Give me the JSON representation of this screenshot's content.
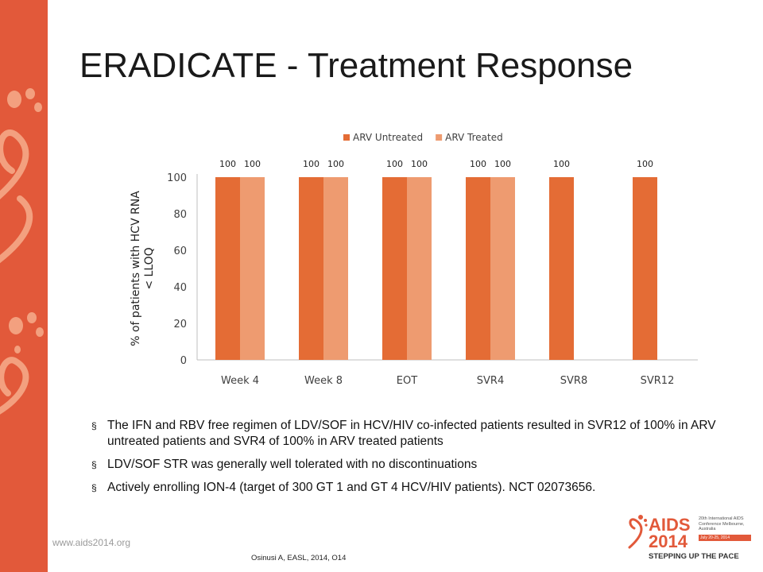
{
  "slide": {
    "title": "ERADICATE - Treatment Response",
    "bullets": [
      "The IFN and RBV free regimen of LDV/SOF in HCV/HIV co-infected patients resulted in SVR12 of 100% in ARV untreated patients and SVR4 of 100% in ARV treated patients",
      "LDV/SOF STR was generally well tolerated with no discontinuations",
      "Actively enrolling ION-4 (target of 300 GT 1 and GT 4 HCV/HIV patients). NCT 02073656."
    ],
    "bullet_mark": "§",
    "url": "www.aids2014.org",
    "citation": "Osinusi A, EASL, 2014, O14",
    "logo": {
      "line1": "AIDS",
      "line2": "2014",
      "conference": "20th International AIDS Conference Melbourne, Australia",
      "dates": "July 20-25, 2014",
      "tagline": "STEPPING UP THE PACE"
    }
  },
  "colors": {
    "accent": "#e2593a",
    "untreated": "#e46c35",
    "treated": "#ee9b70",
    "axis": "#bfbfbf",
    "text": "#404040"
  },
  "chart_data": {
    "type": "bar",
    "categories": [
      "Week 4",
      "Week 8",
      "EOT",
      "SVR4",
      "SVR8",
      "SVR12"
    ],
    "series": [
      {
        "name": "ARV Untreated",
        "values": [
          100,
          100,
          100,
          100,
          100,
          100
        ]
      },
      {
        "name": "ARV Treated",
        "values": [
          100,
          100,
          100,
          100,
          null,
          null
        ]
      }
    ],
    "ylabel": "% of patients with HCV RNA < LLOQ",
    "yticks": [
      0,
      20,
      40,
      60,
      80,
      100
    ],
    "ylim": [
      0,
      100
    ],
    "legend": "top",
    "grid": false,
    "data_labels": true
  }
}
